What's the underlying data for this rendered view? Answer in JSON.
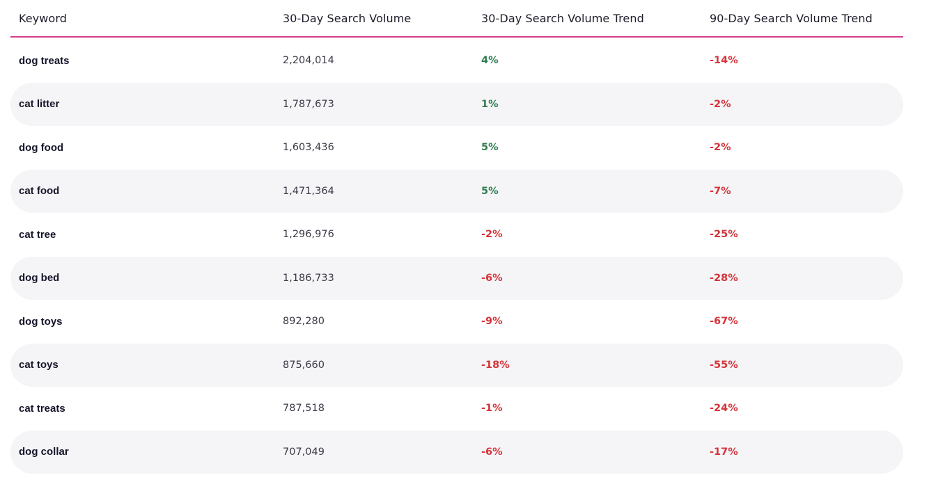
{
  "table": {
    "headers": {
      "keyword": "Keyword",
      "volume": "30-Day Search Volume",
      "trend30": "30-Day Search Volume Trend",
      "trend90": "90-Day Search Volume Trend"
    },
    "rows": [
      {
        "keyword": "dog treats",
        "volume": "2,204,014",
        "trend30": "4%",
        "trend90": "-14%"
      },
      {
        "keyword": "cat litter",
        "volume": "1,787,673",
        "trend30": "1%",
        "trend90": "-2%"
      },
      {
        "keyword": "dog food",
        "volume": "1,603,436",
        "trend30": "5%",
        "trend90": "-2%"
      },
      {
        "keyword": "cat food",
        "volume": "1,471,364",
        "trend30": "5%",
        "trend90": "-7%"
      },
      {
        "keyword": "cat tree",
        "volume": "1,296,976",
        "trend30": "-2%",
        "trend90": "-25%"
      },
      {
        "keyword": "dog bed",
        "volume": "1,186,733",
        "trend30": "-6%",
        "trend90": "-28%"
      },
      {
        "keyword": "dog toys",
        "volume": "892,280",
        "trend30": "-9%",
        "trend90": "-67%"
      },
      {
        "keyword": "cat toys",
        "volume": "875,660",
        "trend30": "-18%",
        "trend90": "-55%"
      },
      {
        "keyword": "cat treats",
        "volume": "787,518",
        "trend30": "-1%",
        "trend90": "-24%"
      },
      {
        "keyword": "dog collar",
        "volume": "707,049",
        "trend30": "-6%",
        "trend90": "-17%"
      }
    ]
  },
  "colors": {
    "accent_line": "#d63d8e",
    "positive": "#2e7d4f",
    "negative": "#d6333a",
    "row_shade": "#f5f5f7"
  }
}
